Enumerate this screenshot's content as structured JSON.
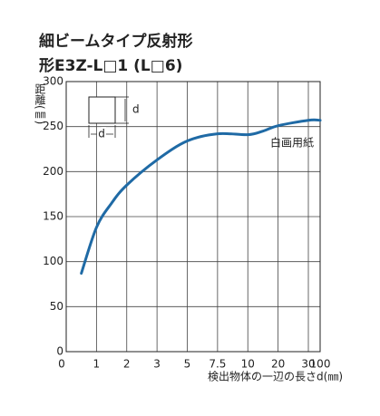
{
  "chart_data": {
    "type": "line",
    "title": "細ビームタイプ反射形",
    "subtitle": "形E3Z-L□1 (L□6)",
    "ylabel": "距離(㎜)",
    "xlabel": "検出物体の一辺の長さd(㎜)",
    "annotation": "白画用紙",
    "inset_labels": [
      "d",
      "d"
    ],
    "x": [
      0.5,
      1,
      1.5,
      2,
      3,
      5,
      7.5,
      10,
      15,
      20,
      30,
      100
    ],
    "series": [
      {
        "name": "白画用紙",
        "color": "#1f6aa5",
        "values": [
          87,
          138,
          165,
          185,
          213,
          234,
          242,
          241,
          245,
          251,
          257,
          257
        ]
      }
    ],
    "xlim": [
      0,
      100
    ],
    "xticks": [
      0,
      1,
      2,
      3,
      5,
      7.5,
      10,
      20,
      30,
      100
    ],
    "ylim": [
      0,
      300
    ],
    "yticks": [
      0,
      50,
      100,
      150,
      200,
      250,
      300
    ],
    "grid": true
  }
}
